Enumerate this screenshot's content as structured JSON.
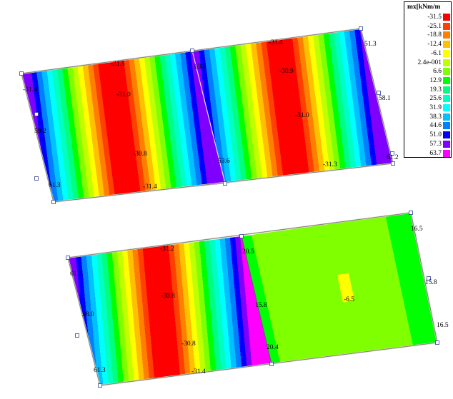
{
  "legend": {
    "title": "mx[kNm/m",
    "items": [
      {
        "value": "-31.5",
        "color": "#ff0000"
      },
      {
        "value": "-25.1",
        "color": "#ff4000"
      },
      {
        "value": "-18.8",
        "color": "#ff8000"
      },
      {
        "value": "-12.4",
        "color": "#ffc000"
      },
      {
        "value": "-6.1",
        "color": "#ffff00"
      },
      {
        "value": "2.4e-001",
        "color": "#c0ff00"
      },
      {
        "value": "6.6",
        "color": "#80ff00"
      },
      {
        "value": "12.9",
        "color": "#00ff00"
      },
      {
        "value": "19.3",
        "color": "#00ff80"
      },
      {
        "value": "25.6",
        "color": "#00ffc0"
      },
      {
        "value": "31.9",
        "color": "#00ffff"
      },
      {
        "value": "38.3",
        "color": "#00c0ff"
      },
      {
        "value": "44.6",
        "color": "#0080ff"
      },
      {
        "value": "51.0",
        "color": "#0000ff"
      },
      {
        "value": "57.3",
        "color": "#8000ff"
      },
      {
        "value": "63.7",
        "color": "#ff00ff"
      }
    ]
  },
  "plates": {
    "top": {
      "labels": [
        "-31.4",
        "59.2",
        "61.3",
        "-31.5",
        "-31.0",
        "-30.8",
        "-31.4",
        "63.6",
        "53.6",
        "-31.4",
        "-30.9",
        "-31.0",
        "-31.3",
        "51.3",
        "58.1",
        "61.2"
      ]
    },
    "bottom": {
      "labels": [
        "61.2",
        "58.0",
        "61.3",
        "-31.2",
        "-30.8",
        "-30.8",
        "-31.4",
        "20.5",
        "15.8",
        "20.4",
        "-6.5",
        "16.5",
        "15.8",
        "16.5"
      ]
    }
  }
}
